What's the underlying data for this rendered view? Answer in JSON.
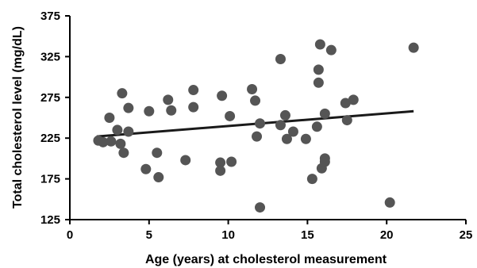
{
  "chart_data": {
    "type": "scatter",
    "title": "",
    "xlabel": "Age (years) at cholesterol measurement",
    "ylabel": "Total cholesterol level (mg/dL)",
    "xlim": [
      0,
      25
    ],
    "ylim": [
      125,
      375
    ],
    "xticks": [
      "0",
      "5",
      "10",
      "15",
      "20",
      "25"
    ],
    "yticks": [
      "125",
      "175",
      "225",
      "275",
      "325",
      "375"
    ],
    "grid": false,
    "legend": "none",
    "point_color": "#555555",
    "line_color": "#1a1a1a",
    "series": [
      {
        "points": [
          [
            1.8,
            222
          ],
          [
            2.1,
            220
          ],
          [
            2.5,
            250
          ],
          [
            2.6,
            221
          ],
          [
            3.0,
            235
          ],
          [
            3.2,
            218
          ],
          [
            3.3,
            280
          ],
          [
            3.4,
            207
          ],
          [
            3.7,
            262
          ],
          [
            3.7,
            233
          ],
          [
            4.8,
            187
          ],
          [
            5.0,
            258
          ],
          [
            5.5,
            207
          ],
          [
            5.6,
            177
          ],
          [
            6.2,
            272
          ],
          [
            6.4,
            259
          ],
          [
            7.3,
            198
          ],
          [
            7.8,
            284
          ],
          [
            7.8,
            263
          ],
          [
            9.5,
            195
          ],
          [
            9.5,
            185
          ],
          [
            9.6,
            277
          ],
          [
            10.1,
            252
          ],
          [
            10.2,
            196
          ],
          [
            11.5,
            285
          ],
          [
            11.7,
            271
          ],
          [
            11.8,
            227
          ],
          [
            12.0,
            243
          ],
          [
            12.0,
            140
          ],
          [
            13.3,
            322
          ],
          [
            13.3,
            241
          ],
          [
            13.6,
            253
          ],
          [
            13.7,
            224
          ],
          [
            14.1,
            233
          ],
          [
            14.9,
            224
          ],
          [
            15.3,
            175
          ],
          [
            15.6,
            239
          ],
          [
            15.7,
            309
          ],
          [
            15.7,
            293
          ],
          [
            15.8,
            340
          ],
          [
            15.9,
            188
          ],
          [
            16.1,
            255
          ],
          [
            16.1,
            200
          ],
          [
            16.1,
            196
          ],
          [
            16.5,
            333
          ],
          [
            17.4,
            268
          ],
          [
            17.5,
            247
          ],
          [
            17.9,
            272
          ],
          [
            20.2,
            146
          ],
          [
            21.7,
            336
          ]
        ]
      }
    ],
    "trendline": {
      "x": [
        1.7,
        21.7
      ],
      "y": [
        227,
        258
      ]
    }
  }
}
